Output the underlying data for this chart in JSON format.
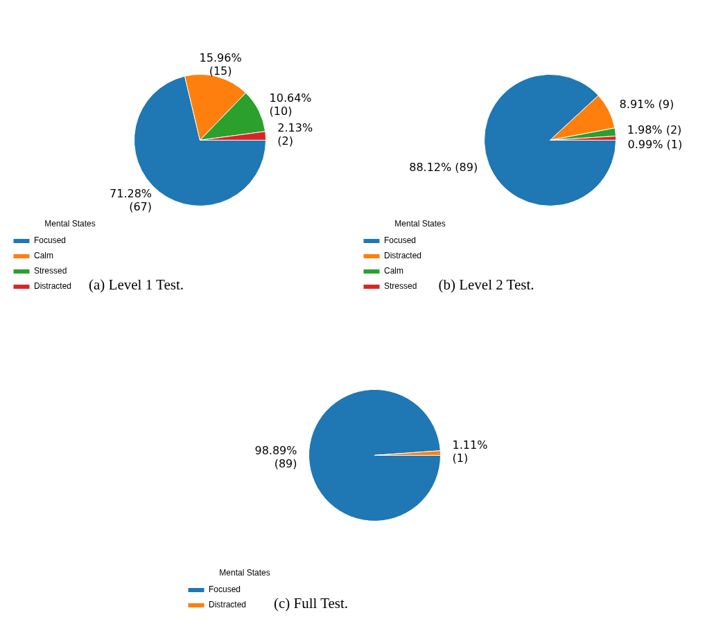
{
  "chart_data": [
    {
      "type": "pie",
      "title": "(a) Level 1 Test.",
      "legend_title": "Mental States",
      "legend": "bottom left",
      "categories": [
        "Focused",
        "Calm",
        "Stressed",
        "Distracted"
      ],
      "values": [
        67,
        15,
        10,
        2
      ],
      "colors": [
        "#1f77b4",
        "#ff7f0e",
        "#2ca02c",
        "#d62728"
      ],
      "value_labels": [
        "71.28%\n(67)",
        "15.96%\n(15)",
        "10.64%\n(10)",
        "2.13%\n(2)"
      ]
    },
    {
      "type": "pie",
      "title": "(b) Level 2 Test.",
      "legend_title": "Mental States",
      "legend": "bottom left",
      "categories": [
        "Focused",
        "Distracted",
        "Calm",
        "Stressed"
      ],
      "values": [
        89,
        9,
        2,
        1
      ],
      "colors": [
        "#1f77b4",
        "#ff7f0e",
        "#2ca02c",
        "#d62728"
      ],
      "value_labels": [
        "88.12% (89)",
        "8.91% (9)",
        "1.98% (2)",
        "0.99% (1)"
      ]
    },
    {
      "type": "pie",
      "title": "(c) Full Test.",
      "legend_title": "Mental States",
      "legend": "bottom left",
      "categories": [
        "Focused",
        "Distracted"
      ],
      "values": [
        89,
        1
      ],
      "colors": [
        "#1f77b4",
        "#ff7f0e"
      ],
      "value_labels": [
        "98.89%\n(89)",
        "1.11%\n(1)"
      ]
    }
  ]
}
